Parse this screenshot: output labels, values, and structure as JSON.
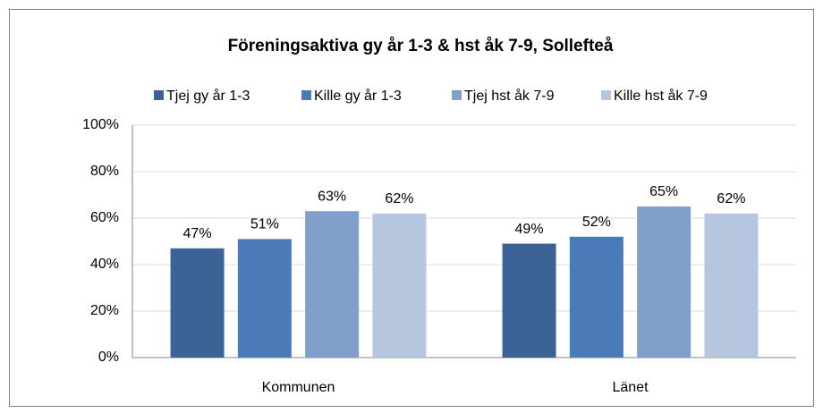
{
  "chart_data": {
    "type": "bar",
    "title": "Föreningsaktiva gy år 1-3 & hst åk 7-9, Sollefteå",
    "categories": [
      "Kommunen",
      "Länet"
    ],
    "series": [
      {
        "name": "Tjej gy år 1-3",
        "color": "#3c6396",
        "values": [
          47,
          49
        ],
        "value_labels": [
          "47%",
          "49%"
        ]
      },
      {
        "name": "Kille gy år 1-3",
        "color": "#4a7ab7",
        "values": [
          51,
          52
        ],
        "value_labels": [
          "51%",
          "52%"
        ]
      },
      {
        "name": "Tjej hst åk 7-9",
        "color": "#809fcb",
        "values": [
          63,
          65
        ],
        "value_labels": [
          "63%",
          "65%"
        ]
      },
      {
        "name": "Kille hst åk 7-9",
        "color": "#b7c6df",
        "values": [
          62,
          62
        ],
        "value_labels": [
          "62%",
          "62%"
        ]
      }
    ],
    "ylim": [
      0,
      100
    ],
    "yticks": [
      {
        "value": 0,
        "label": "0%"
      },
      {
        "value": 20,
        "label": "20%"
      },
      {
        "value": 40,
        "label": "40%"
      },
      {
        "value": 60,
        "label": "60%"
      },
      {
        "value": 80,
        "label": "80%"
      },
      {
        "value": 100,
        "label": "100%"
      }
    ],
    "grid": true,
    "legend": "top"
  }
}
